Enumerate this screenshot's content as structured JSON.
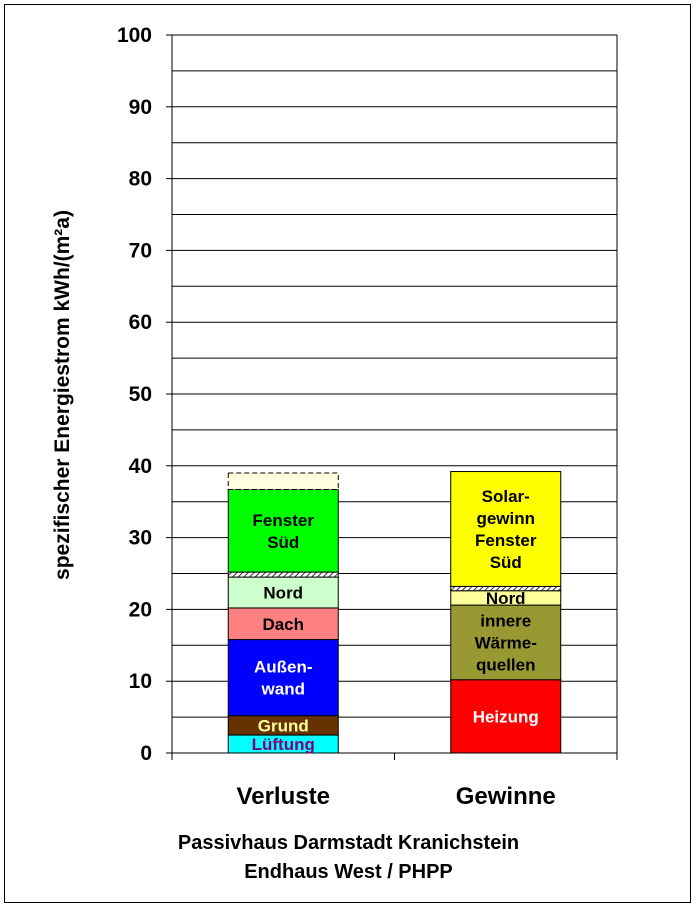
{
  "chart_data": {
    "type": "bar",
    "stacked": true,
    "ylabel": "spezifischer Energiestrom kWh/(m²a)",
    "ylim": [
      0,
      100
    ],
    "yticks": [
      0,
      10,
      20,
      30,
      40,
      50,
      60,
      70,
      80,
      90,
      100
    ],
    "grid": true,
    "categories": [
      "Verluste",
      "Gewinne"
    ],
    "stacks": [
      {
        "category": "Verluste",
        "segments": [
          {
            "label": [
              "Lüftung"
            ],
            "from": 0,
            "to": 2.5,
            "color": "#00ffff",
            "text_color": "#800080"
          },
          {
            "label": [
              "Grund"
            ],
            "from": 2.5,
            "to": 5.2,
            "color": "#663300",
            "text_color": "#ffff99"
          },
          {
            "label": [
              "Außen-",
              "wand"
            ],
            "from": 5.2,
            "to": 15.8,
            "color": "#0000ff",
            "text_color": "#ffffff"
          },
          {
            "label": [
              "Dach"
            ],
            "from": 15.8,
            "to": 20.2,
            "color": "#ff8080",
            "text_color": "#000000"
          },
          {
            "label": [
              "Nord"
            ],
            "from": 20.2,
            "to": 24.5,
            "color": "#ccffcc",
            "text_color": "#000000"
          },
          {
            "label": [],
            "from": 24.5,
            "to": 25.2,
            "color": "#ccffcc",
            "text_color": "#000000",
            "hatch": true
          },
          {
            "label": [
              "Fenster",
              "Süd"
            ],
            "from": 25.2,
            "to": 36.7,
            "color": "#00ff00",
            "text_color": "#000000"
          },
          {
            "label": [],
            "from": 36.7,
            "to": 39.0,
            "color": "#ffffe0",
            "text_color": "#000000",
            "dashed": true
          }
        ]
      },
      {
        "category": "Gewinne",
        "segments": [
          {
            "label": [
              "Heizung"
            ],
            "from": 0,
            "to": 10.2,
            "color": "#ff0000",
            "text_color": "#ffffff"
          },
          {
            "label": [
              "innere",
              "Wärme-",
              "quellen"
            ],
            "from": 10.2,
            "to": 20.6,
            "color": "#999933",
            "text_color": "#000000"
          },
          {
            "label": [
              "Nord"
            ],
            "from": 20.6,
            "to": 22.6,
            "color": "#ffff99",
            "text_color": "#000000"
          },
          {
            "label": [],
            "from": 22.6,
            "to": 23.2,
            "color": "#ffff99",
            "text_color": "#000000",
            "hatch": true
          },
          {
            "label": [
              "Solar-",
              "gewinn",
              "Fenster",
              "Süd"
            ],
            "from": 23.2,
            "to": 39.2,
            "color": "#ffff00",
            "text_color": "#000000"
          }
        ]
      }
    ]
  },
  "caption": {
    "line1": "Passivhaus Darmstadt Kranichstein",
    "line2": "Endhaus West / PHPP"
  }
}
